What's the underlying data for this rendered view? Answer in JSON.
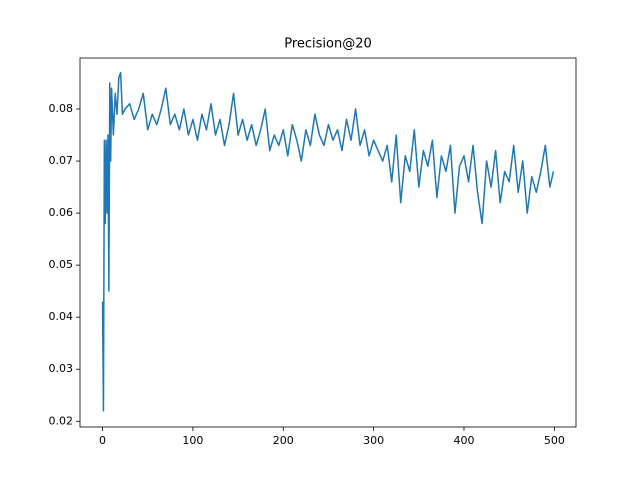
{
  "chart_data": {
    "type": "line",
    "title": "Precision@20",
    "x": [
      0,
      1,
      2,
      3,
      4,
      5,
      6,
      7,
      8,
      9,
      10,
      12,
      14,
      16,
      18,
      20,
      22,
      25,
      30,
      35,
      40,
      45,
      50,
      55,
      60,
      65,
      70,
      75,
      80,
      85,
      90,
      95,
      100,
      105,
      110,
      115,
      120,
      125,
      130,
      135,
      140,
      145,
      150,
      155,
      160,
      165,
      170,
      175,
      180,
      185,
      190,
      195,
      200,
      205,
      210,
      215,
      220,
      225,
      230,
      235,
      240,
      245,
      250,
      255,
      260,
      265,
      270,
      275,
      280,
      285,
      290,
      295,
      300,
      305,
      310,
      315,
      320,
      325,
      330,
      335,
      340,
      345,
      350,
      355,
      360,
      365,
      370,
      375,
      380,
      385,
      390,
      395,
      400,
      405,
      410,
      415,
      420,
      425,
      430,
      435,
      440,
      445,
      450,
      455,
      460,
      465,
      470,
      475,
      480,
      485,
      490,
      495,
      499
    ],
    "series": [
      {
        "color": "#1f77b4",
        "values": [
          0.043,
          0.022,
          0.074,
          0.058,
          0.074,
          0.06,
          0.075,
          0.045,
          0.085,
          0.07,
          0.084,
          0.075,
          0.083,
          0.079,
          0.086,
          0.087,
          0.079,
          0.08,
          0.081,
          0.078,
          0.08,
          0.083,
          0.076,
          0.079,
          0.077,
          0.08,
          0.084,
          0.077,
          0.079,
          0.076,
          0.08,
          0.075,
          0.078,
          0.074,
          0.079,
          0.076,
          0.081,
          0.075,
          0.078,
          0.073,
          0.077,
          0.083,
          0.075,
          0.078,
          0.074,
          0.077,
          0.073,
          0.076,
          0.08,
          0.072,
          0.075,
          0.073,
          0.076,
          0.071,
          0.077,
          0.074,
          0.07,
          0.076,
          0.073,
          0.079,
          0.075,
          0.073,
          0.077,
          0.074,
          0.076,
          0.072,
          0.078,
          0.074,
          0.08,
          0.073,
          0.076,
          0.071,
          0.074,
          0.072,
          0.07,
          0.073,
          0.066,
          0.075,
          0.062,
          0.071,
          0.068,
          0.076,
          0.065,
          0.072,
          0.069,
          0.074,
          0.063,
          0.071,
          0.068,
          0.073,
          0.06,
          0.069,
          0.071,
          0.066,
          0.073,
          0.064,
          0.058,
          0.07,
          0.065,
          0.072,
          0.062,
          0.068,
          0.066,
          0.073,
          0.064,
          0.07,
          0.06,
          0.067,
          0.064,
          0.068,
          0.073,
          0.065,
          0.068
        ]
      }
    ],
    "xlim": [
      -24.95,
      523.95
    ],
    "ylim": [
      0.0189,
      0.0898
    ],
    "xticks": [
      0,
      100,
      200,
      300,
      400,
      500
    ],
    "yticks": [
      0.02,
      0.03,
      0.04,
      0.05,
      0.06,
      0.07,
      0.08
    ]
  }
}
